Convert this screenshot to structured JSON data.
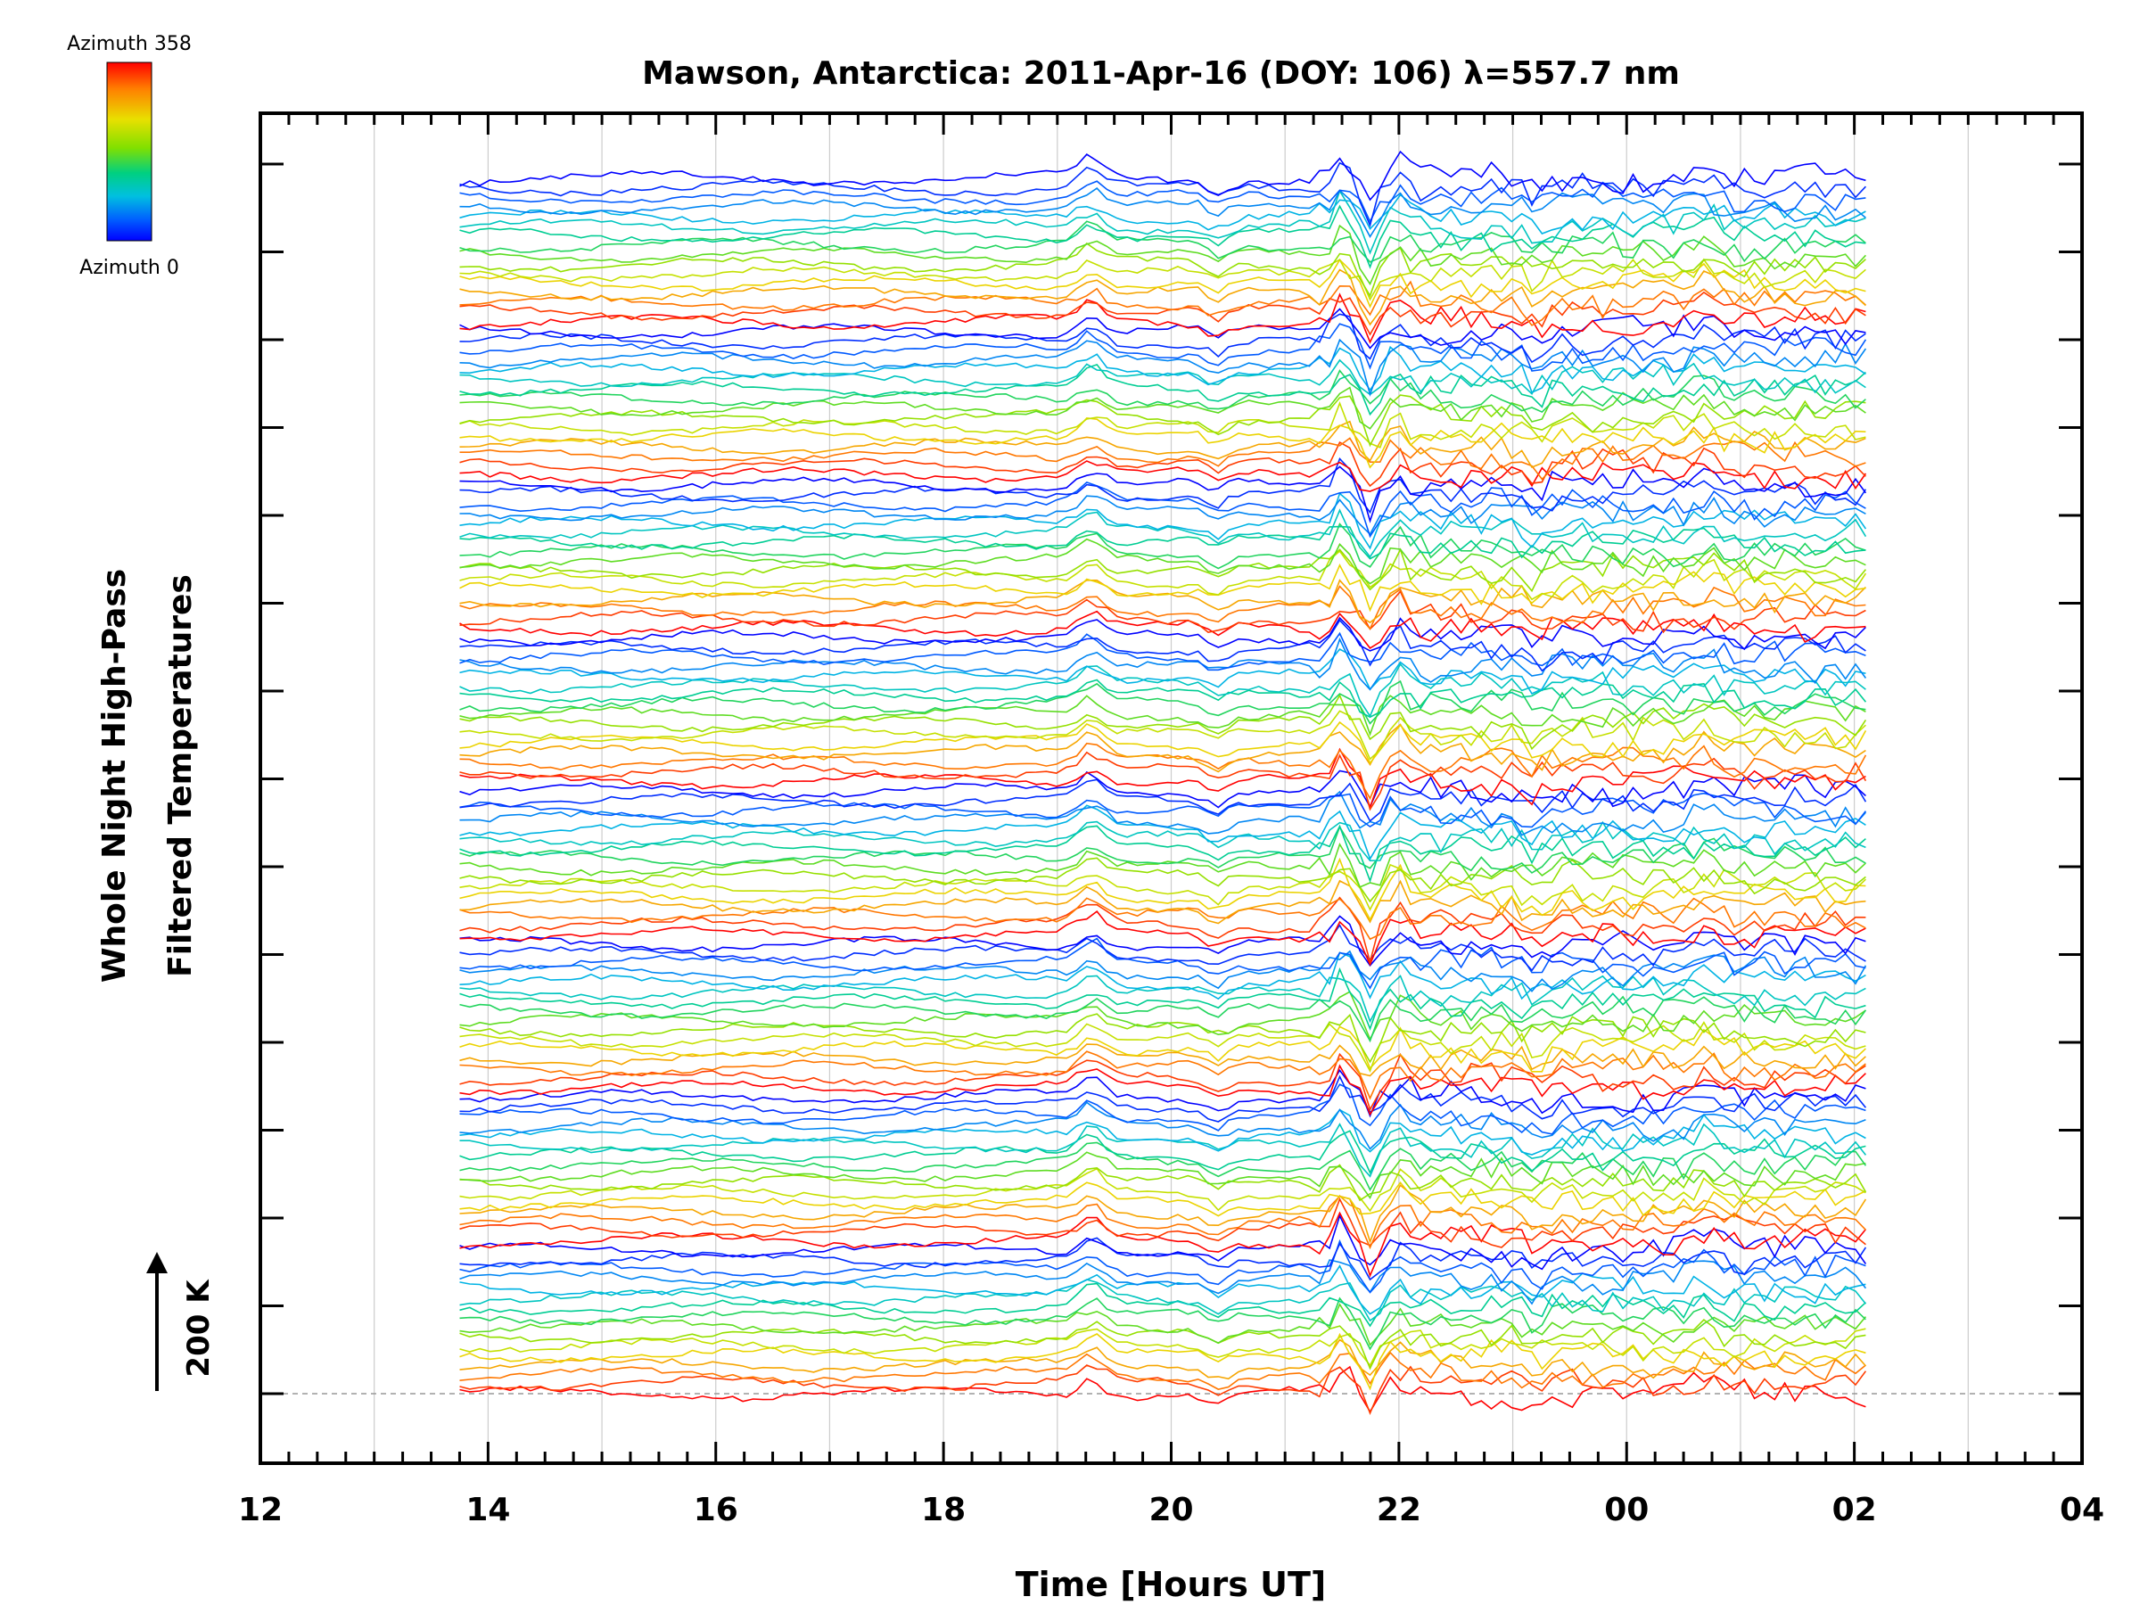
{
  "chart_data": {
    "type": "line",
    "title": "Mawson, Antarctica: 2011-Apr-16 (DOY: 106) λ=557.7 nm",
    "xlabel": "Time [Hours UT]",
    "ylabel_line1": "Whole Night High-Pass",
    "ylabel_line2": "Filtered Temperatures",
    "scale_label": "200 K",
    "x_ticks": [
      "12",
      "14",
      "16",
      "18",
      "20",
      "22",
      "00",
      "02",
      "04"
    ],
    "xlim": [
      12,
      28
    ],
    "data_x_range": [
      13.75,
      26.1
    ],
    "colorbar": {
      "top_label": "Azimuth 358",
      "bottom_label": "Azimuth 0",
      "colors": [
        "#ff0000",
        "#ff8000",
        "#e8e000",
        "#80e000",
        "#00d080",
        "#00c0e0",
        "#0060ff",
        "#0000ff"
      ]
    },
    "trace_groups": 8,
    "traces_per_group": 16,
    "colors": {
      "axis": "#000000",
      "grid": "#cccccc",
      "baseline": "#999999"
    }
  }
}
